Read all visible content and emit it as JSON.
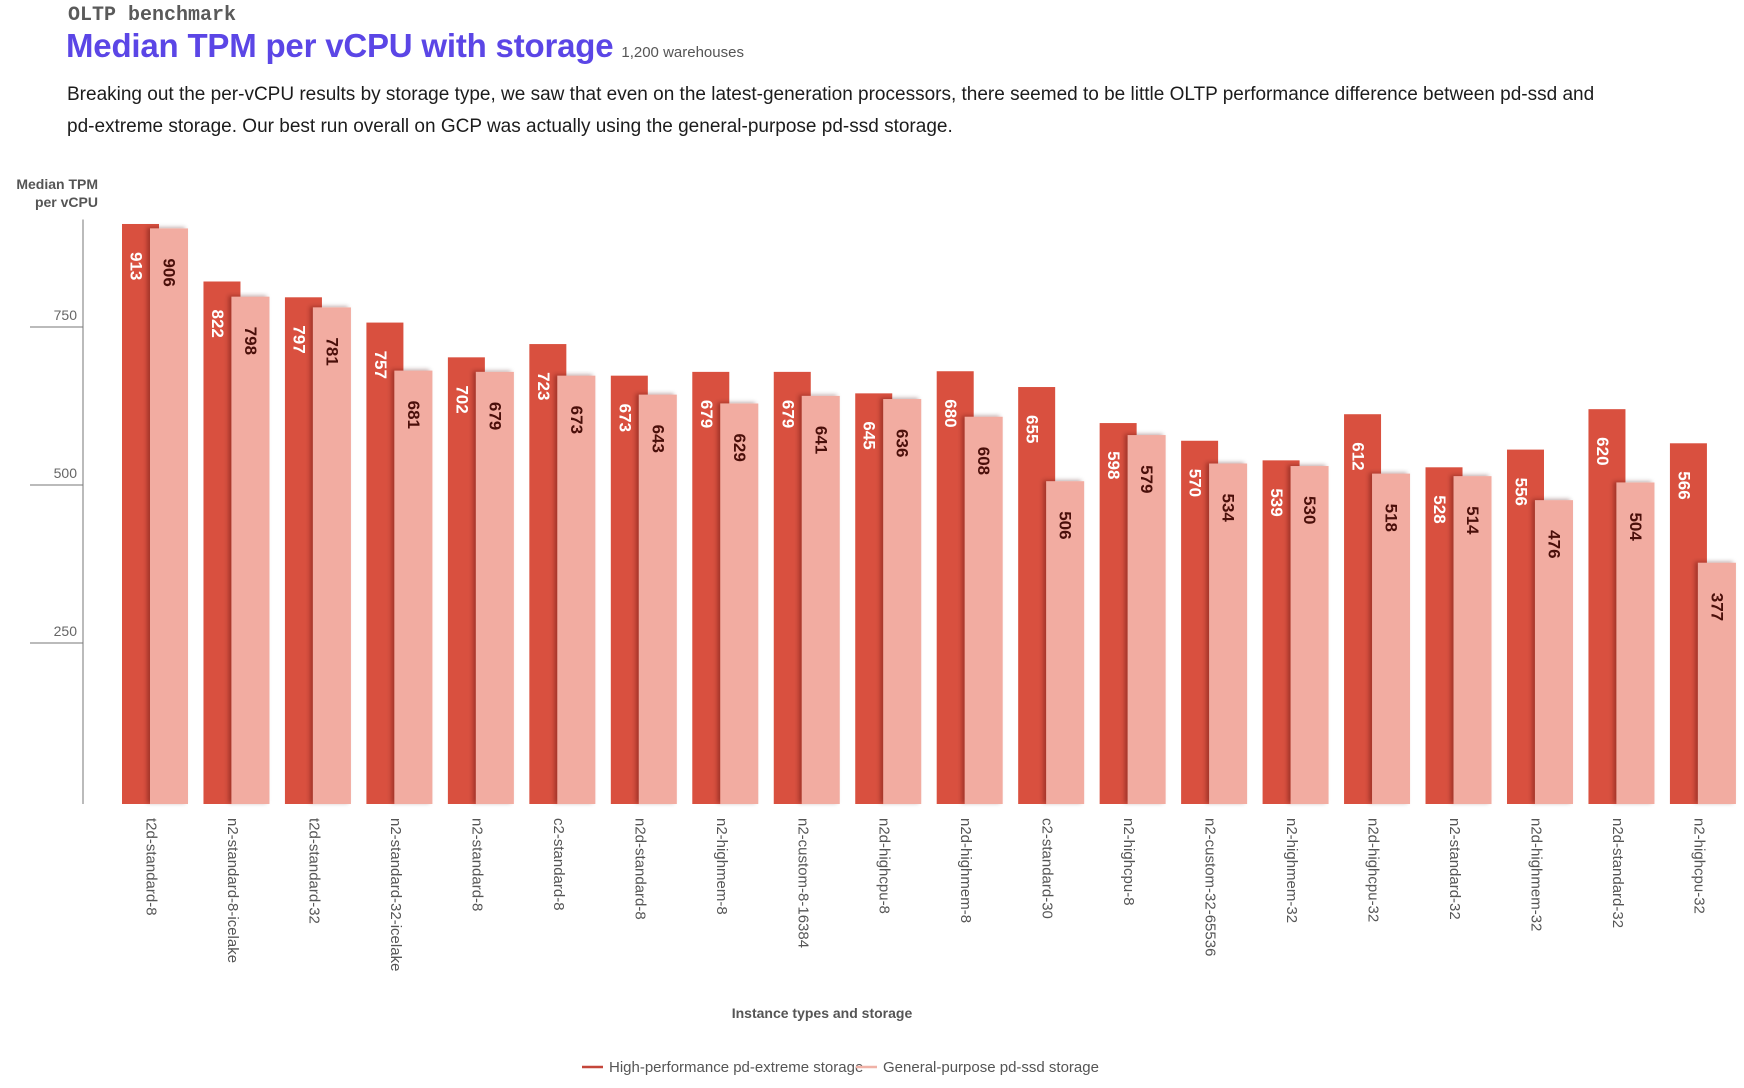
{
  "header": {
    "eyebrow": "OLTP benchmark",
    "title": "Median TPM per vCPU with storage",
    "subtitle": "1,200 warehouses",
    "description": "Breaking out the per-vCPU results by storage type, we saw that even on the latest-generation processors, there seemed to be little OLTP performance difference between pd-ssd and pd-extreme storage. Our best run overall on GCP was actually using the general-purpose pd-ssd storage."
  },
  "colors": {
    "accent": "#5b46e6",
    "label_on_dark": "#ffffff",
    "label_on_light": "#4a0f0a",
    "axis": "#777777"
  },
  "chart_data": {
    "type": "bar",
    "title": "Median TPM per vCPU with storage",
    "subtitle": "1,200 warehouses",
    "xlabel": "Instance types and storage",
    "ylabel": "Median TPM per vCPU",
    "ylim": [
      0,
      920
    ],
    "yticks": [
      250,
      500,
      750
    ],
    "grid": false,
    "legend": "bottom-center",
    "categories": [
      "t2d-standard-8",
      "n2-standard-8-icelake",
      "t2d-standard-32",
      "n2-standard-32-icelake",
      "n2-standard-8",
      "c2-standard-8",
      "n2d-standard-8",
      "n2-highmem-8",
      "n2-custom-8-16384",
      "n2d-highcpu-8",
      "n2d-highmem-8",
      "c2-standard-30",
      "n2-highcpu-8",
      "n2-custom-32-65536",
      "n2-highmem-32",
      "n2d-highcpu-32",
      "n2-standard-32",
      "n2d-highmem-32",
      "n2d-standard-32",
      "n2-highcpu-32"
    ],
    "series": [
      {
        "name": "High-performance pd-extreme  storage",
        "color": "#d9503f",
        "legend_color": "#c4463a",
        "values": [
          913,
          822,
          797,
          757,
          702,
          723,
          673,
          679,
          679,
          645,
          680,
          655,
          598,
          570,
          539,
          612,
          528,
          556,
          620,
          566
        ]
      },
      {
        "name": "General-purpose pd-ssd storage",
        "color": "#f2aca1",
        "legend_color": "#f0b2a7",
        "values": [
          906,
          798,
          781,
          681,
          679,
          673,
          643,
          629,
          641,
          636,
          608,
          506,
          579,
          534,
          530,
          518,
          514,
          476,
          504,
          377
        ]
      }
    ]
  }
}
